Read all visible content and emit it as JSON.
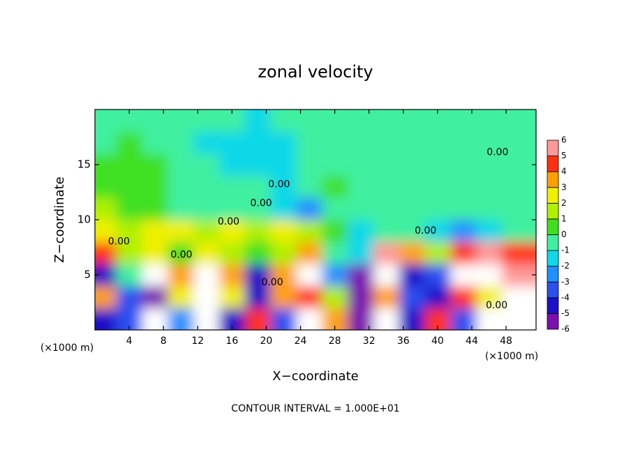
{
  "chart_data": {
    "type": "heatmap",
    "title": "zonal velocity",
    "x_label": "X−coordinate",
    "y_label": "Z−coordinate",
    "x_unit": "(×1000 m)",
    "y_unit": "(×1000 m)",
    "footer": "CONTOUR INTERVAL = 1.000E+01",
    "xlim": [
      0,
      51.5
    ],
    "ylim": [
      0,
      20
    ],
    "xticks": [
      4,
      8,
      12,
      16,
      20,
      24,
      28,
      32,
      36,
      40,
      44,
      48
    ],
    "yticks": [
      5,
      10,
      15
    ],
    "x": [
      1,
      4,
      7,
      10,
      13,
      16,
      19,
      22,
      25,
      28,
      31,
      34,
      37,
      40,
      43,
      46,
      49
    ],
    "y": [
      1,
      3,
      5,
      7,
      9,
      11,
      13,
      15,
      17,
      19
    ],
    "z": [
      [
        -4,
        -3,
        7,
        -2,
        -7,
        -4,
        5,
        -3,
        7,
        4,
        -5,
        7,
        -4,
        5,
        -3,
        -7,
        -7
      ],
      [
        4,
        -3,
        -5,
        3,
        7,
        3,
        -4,
        4,
        5,
        2,
        -5,
        4,
        -3,
        -4,
        5,
        3,
        7
      ],
      [
        -4,
        0,
        -7,
        4,
        7,
        4,
        -4,
        4,
        8,
        -2,
        -5,
        7,
        -4,
        -3,
        7,
        7,
        6
      ],
      [
        5,
        2,
        3,
        1,
        3,
        2,
        1,
        2,
        4,
        0,
        -1,
        6,
        4,
        2,
        5,
        6,
        5
      ],
      [
        3,
        2,
        3,
        3,
        2,
        3,
        2,
        3,
        2,
        1,
        -1,
        0,
        0,
        -1,
        -2,
        -1,
        0
      ],
      [
        2,
        1,
        1,
        0,
        0,
        0,
        0,
        -1,
        -2,
        0,
        0,
        0,
        0,
        -0.5,
        -0.5,
        0,
        0
      ],
      [
        1,
        1,
        1,
        0,
        0,
        0,
        -0.5,
        -1,
        0,
        0.5,
        0,
        0,
        0,
        0,
        0,
        0,
        0
      ],
      [
        0.5,
        1,
        0.5,
        0,
        -0.5,
        -1,
        -1,
        -1,
        0,
        0,
        0,
        0,
        0,
        0,
        -0.5,
        0,
        0
      ],
      [
        0,
        0.5,
        0,
        -0.5,
        -1,
        -1,
        -1,
        -1,
        -0.5,
        0,
        0,
        0,
        0,
        0,
        0,
        0,
        0
      ],
      [
        0,
        0,
        0,
        0,
        0,
        -0.5,
        -1,
        -0.5,
        0,
        0,
        0,
        0,
        0,
        0,
        0,
        0,
        0
      ]
    ],
    "levels": [
      -6,
      -5,
      -4,
      -3,
      -2,
      -1,
      0,
      1,
      2,
      3,
      4,
      5,
      6
    ],
    "colors": [
      "#7a10b0",
      "#1a10c8",
      "#2a50f0",
      "#2090ff",
      "#10d8e8",
      "#40f0a0",
      "#40e020",
      "#b0f000",
      "#f0f000",
      "#ffa000",
      "#ff3010",
      "#ff9898"
    ],
    "out_of_range_color": "#ffffff",
    "contour_labels": [
      {
        "text": "0.00",
        "x": 47,
        "y": 16.1
      },
      {
        "text": "0.00",
        "x": 21.5,
        "y": 13.2
      },
      {
        "text": "0.00",
        "x": 19.4,
        "y": 11.5
      },
      {
        "text": "0.00",
        "x": 15.6,
        "y": 9.8
      },
      {
        "text": "0.00",
        "x": 2.8,
        "y": 8
      },
      {
        "text": "0.00",
        "x": 10.1,
        "y": 6.8
      },
      {
        "text": "0.00",
        "x": 20.7,
        "y": 4.3
      },
      {
        "text": "0.00",
        "x": 46.9,
        "y": 2.2
      },
      {
        "text": "0.00",
        "x": 38.6,
        "y": 9.0
      }
    ]
  }
}
